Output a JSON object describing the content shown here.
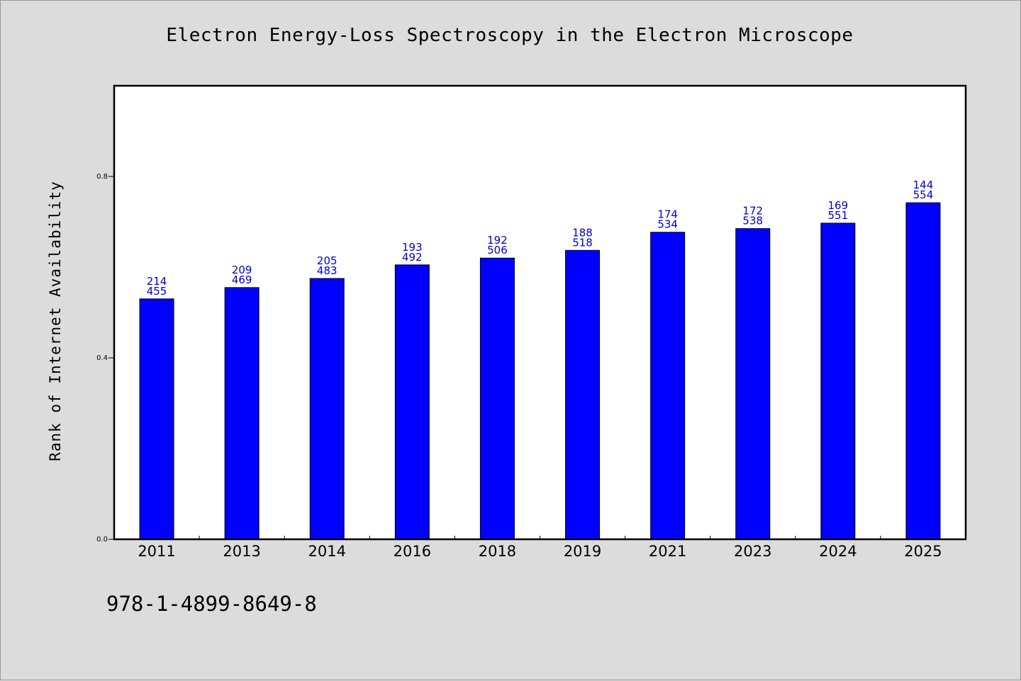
{
  "chart_data": {
    "type": "bar",
    "title": "Electron Energy-Loss Spectroscopy in the Electron Microscope",
    "xlabel": "",
    "ylabel": "Rank of Internet Availability",
    "categories": [
      "2011",
      "2013",
      "2014",
      "2016",
      "2018",
      "2019",
      "2021",
      "2023",
      "2024",
      "2025"
    ],
    "values": [
      0.53,
      0.555,
      0.575,
      0.605,
      0.62,
      0.637,
      0.677,
      0.685,
      0.697,
      0.742
    ],
    "bar_labels_top": [
      "214",
      "209",
      "205",
      "193",
      "192",
      "188",
      "174",
      "172",
      "169",
      "144"
    ],
    "bar_labels_bottom": [
      "455",
      "469",
      "483",
      "492",
      "506",
      "518",
      "534",
      "538",
      "551",
      "554"
    ],
    "ylim": [
      0.0,
      1.0
    ],
    "yticks": [
      0.0,
      0.4,
      0.8
    ],
    "ytick_labels": [
      "0.0",
      "0.4",
      "0.8"
    ],
    "grid": false,
    "legend": "none",
    "bar_color": "#0000ff",
    "label_color": "#0000cc"
  },
  "footer": {
    "isbn": "978-1-4899-8649-8"
  }
}
